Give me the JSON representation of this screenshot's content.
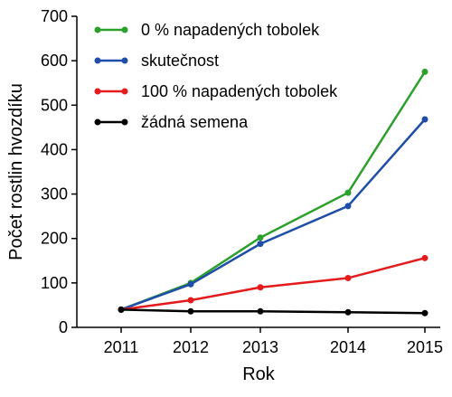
{
  "chart_data": {
    "type": "line",
    "title": "",
    "xlabel": "Rok",
    "ylabel": "Počet rostlin hvozdíku",
    "x": [
      "2011",
      "2012",
      "2013",
      "2014",
      "2015"
    ],
    "ylim": [
      0,
      700
    ],
    "yticks": [
      0,
      100,
      200,
      300,
      400,
      500,
      600,
      700
    ],
    "grid": false,
    "legend_position": "top-left",
    "series": [
      {
        "name": "0 % napadených tobolek",
        "color": "#2ca02c",
        "values": [
          40,
          100,
          202,
          303,
          575
        ]
      },
      {
        "name": "skutečnost",
        "color": "#1f4ea8",
        "values": [
          40,
          97,
          188,
          273,
          468
        ]
      },
      {
        "name": "100 % napadených tobolek",
        "color": "#e41a1c",
        "values": [
          40,
          61,
          90,
          111,
          156
        ]
      },
      {
        "name": "žádná semena",
        "color": "#000000",
        "values": [
          40,
          36,
          36,
          34,
          32
        ]
      }
    ]
  }
}
